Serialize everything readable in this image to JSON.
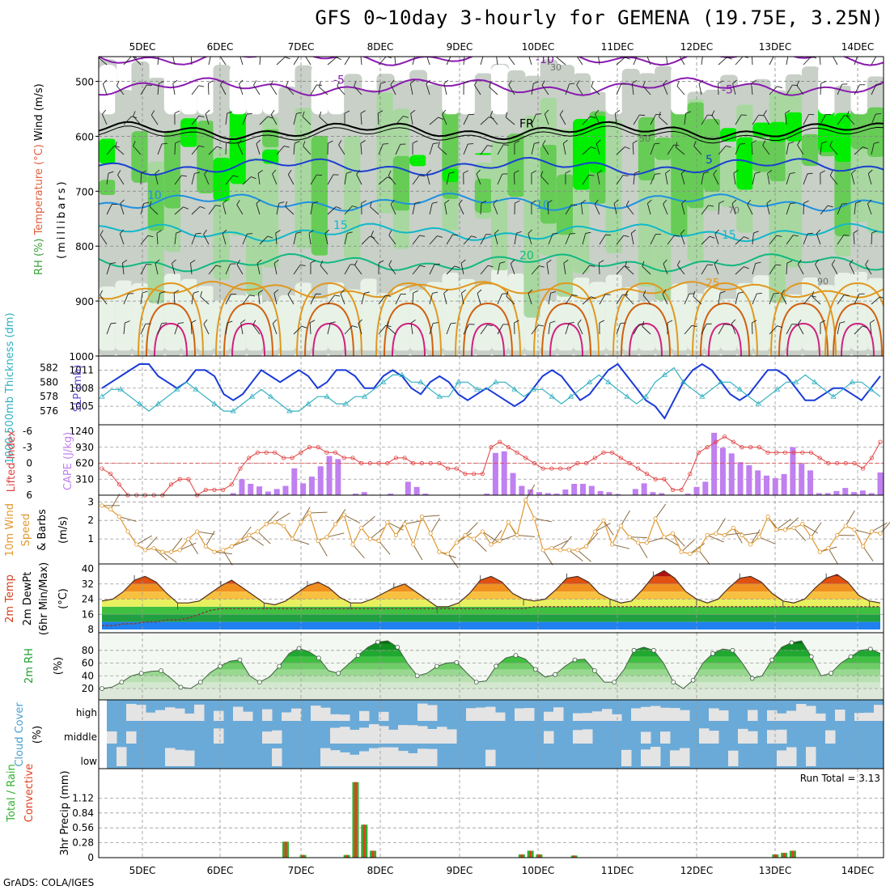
{
  "title": "GFS 0~10day 3-hourly for GEMENA (19.75E, 3.25N)",
  "credit": "GrADS: COLA/IGES",
  "dates": [
    "5DEC",
    "6DEC",
    "7DEC",
    "8DEC",
    "9DEC",
    "10DEC",
    "11DEC",
    "12DEC",
    "13DEC",
    "14DEC"
  ],
  "colors": {
    "green_bright": "#00ee00",
    "green_mid": "#66cc55",
    "green_light": "#a8d8a0",
    "grey": "#c8d0c8",
    "frame": "#000000",
    "cloud_blue": "#6aaad8",
    "cloud_white": "#e4e4e4"
  },
  "chart_data": [
    {
      "type": "contour",
      "panel": "upper-air",
      "ylabel": "(millibars)",
      "yticks": [
        500,
        600,
        700,
        800,
        900,
        1000
      ],
      "side_labels": [
        "Wind (m/s)",
        "Temperature (°C)",
        "RH (%)"
      ],
      "temp_contours": [
        {
          "label": "-10",
          "pressure": 455,
          "color": "#8a1ab0"
        },
        {
          "label": "-5",
          "pressure": 510,
          "color": "#8a1ab0"
        },
        {
          "label": "FR",
          "pressure": 590,
          "color": "#000000"
        },
        {
          "label": "5",
          "pressure": 655,
          "color": "#1a40d0"
        },
        {
          "label": "10",
          "pressure": 720,
          "color": "#1e90e0"
        },
        {
          "label": "15",
          "pressure": 775,
          "color": "#10b8c8"
        },
        {
          "label": "20",
          "pressure": 830,
          "color": "#10b880"
        },
        {
          "label": "25",
          "pressure": 880,
          "color": "#e09820"
        }
      ],
      "rh_labels": [
        "30",
        "50",
        "70",
        "90"
      ]
    },
    {
      "type": "line",
      "panel": "slp-thickness",
      "ylabel_left": "1000-500mb Thickness (dm)",
      "ylabel_right": "SLP (mb)",
      "yticks_left": [
        576,
        578,
        580,
        582
      ],
      "yticks_right": [
        1005,
        1008,
        1011
      ],
      "series": [
        {
          "name": "SLP",
          "color": "#1a3ad8",
          "values": [
            1008,
            1009,
            1010,
            1011,
            1012,
            1012,
            1010,
            1009,
            1008,
            1009,
            1011,
            1011,
            1010,
            1007,
            1006,
            1007,
            1009,
            1011,
            1010,
            1009,
            1010,
            1011,
            1010,
            1008,
            1009,
            1011,
            1011,
            1010,
            1008,
            1008,
            1010,
            1011,
            1010,
            1008,
            1007,
            1009,
            1010,
            1009,
            1007,
            1006,
            1007,
            1008,
            1007,
            1006,
            1005,
            1006,
            1008,
            1010,
            1011,
            1010,
            1008,
            1006,
            1007,
            1009,
            1011,
            1012,
            1010,
            1008,
            1006,
            1005,
            1003,
            1006,
            1009,
            1011,
            1012,
            1011,
            1009,
            1007,
            1006,
            1007,
            1009,
            1011,
            1011,
            1010,
            1008,
            1006,
            1006,
            1007,
            1008,
            1008,
            1007,
            1006,
            1008,
            1010
          ]
        },
        {
          "name": "Thickness",
          "color": "#30b0c0",
          "values": [
            578,
            579,
            579,
            578,
            577,
            576,
            577,
            578,
            579,
            580,
            579,
            578,
            577,
            576,
            576,
            577,
            578,
            579,
            578,
            577,
            576,
            576,
            577,
            578,
            578,
            577,
            577,
            578,
            578,
            579,
            580,
            581,
            581,
            580,
            580,
            579,
            578,
            578,
            580,
            580,
            579,
            579,
            580,
            580,
            579,
            578,
            579,
            579,
            578,
            577,
            578,
            579,
            580,
            581,
            580,
            579,
            578,
            577,
            578,
            580,
            581,
            582,
            580,
            579,
            578,
            579,
            580,
            580,
            579,
            578,
            577,
            578,
            579,
            580,
            580,
            581,
            580,
            579,
            578,
            579,
            580,
            580,
            579,
            578
          ]
        }
      ]
    },
    {
      "type": "bar",
      "panel": "cape-li",
      "ylabel_left": "Lifted Index",
      "ylabel_right": "CAPE (J/kg)",
      "yticks_left": [
        -6,
        -3,
        0,
        3,
        6
      ],
      "yticks_right": [
        310,
        620,
        930,
        1240
      ],
      "cape": [
        0,
        0,
        0,
        0,
        0,
        0,
        0,
        0,
        0,
        0,
        0,
        0,
        0,
        0,
        0,
        40,
        310,
        220,
        170,
        70,
        120,
        180,
        520,
        230,
        360,
        560,
        760,
        700,
        0,
        30,
        60,
        10,
        0,
        30,
        0,
        260,
        160,
        30,
        0,
        0,
        0,
        0,
        0,
        0,
        30,
        820,
        850,
        430,
        180,
        110,
        60,
        40,
        30,
        110,
        220,
        220,
        180,
        80,
        60,
        20,
        0,
        120,
        230,
        60,
        40,
        0,
        0,
        30,
        160,
        260,
        1210,
        920,
        810,
        640,
        580,
        480,
        380,
        330,
        410,
        930,
        610,
        480,
        40,
        40,
        80,
        140,
        60,
        90,
        40,
        440
      ],
      "li": [
        1,
        2,
        4,
        6,
        6,
        6,
        6,
        6,
        4,
        3,
        3,
        6,
        5,
        5,
        5,
        4,
        1,
        -1,
        -2,
        -2,
        -2,
        -1,
        -1,
        -2,
        -3,
        -3,
        -2,
        -2,
        -1,
        -1,
        0,
        0,
        0,
        0,
        -1,
        -1,
        0,
        0,
        0,
        0,
        1,
        1,
        2,
        2,
        2,
        -3,
        -4,
        -3,
        -2,
        -1,
        0,
        1,
        1,
        1,
        1,
        0,
        0,
        -1,
        -2,
        -2,
        -1,
        0,
        1,
        2,
        3,
        3,
        5,
        5,
        2,
        -2,
        -3,
        -4,
        -5,
        -4,
        -3,
        -3,
        -3,
        -2,
        -2,
        -2,
        -2,
        -2,
        -2,
        -1,
        0,
        0,
        0,
        0,
        1,
        -1,
        -4
      ]
    },
    {
      "type": "line",
      "panel": "wind10m",
      "ylabel": "10m Wind Speed & Barbs (m/s)",
      "yticks": [
        1,
        2,
        3
      ],
      "series": [
        {
          "name": "10m Wind",
          "color": "#e09830",
          "values": [
            2.8,
            2.6,
            2.2,
            1.4,
            0.7,
            0.4,
            0.5,
            0.3,
            0.3,
            0.4,
            1.0,
            1.4,
            0.6,
            0.3,
            0.4,
            0.6,
            0.9,
            1.2,
            1.4,
            1.8,
            1.9,
            1.7,
            1.0,
            1.9,
            2.4,
            0.9,
            1.1,
            1.8,
            2.3,
            0.7,
            1.6,
            1.0,
            0.9,
            1.9,
            1.2,
            1.8,
            0.7,
            2.2,
            1.3,
            0.3,
            0.2,
            0.8,
            1.2,
            1.0,
            1.4,
            0.7,
            0.9,
            1.9,
            1.2,
            3.1,
            2.1,
            0.4,
            0.5,
            0.4,
            0.4,
            0.4,
            0.6,
            1.4,
            2.0,
            0.7,
            1.7,
            1.1,
            0.8,
            0.8,
            2.1,
            1.1,
            1.3,
            0.3,
            0.2,
            0.4,
            1.2,
            1.3,
            1.2,
            1.6,
            1.2,
            0.7,
            1.1,
            2.2,
            1.5,
            1.5,
            1.6,
            1.8,
            1.1,
            0.3,
            0.5,
            1.2,
            1.7,
            1.5,
            0.6,
            1.4,
            1.3
          ]
        }
      ]
    },
    {
      "type": "area",
      "panel": "temp2m",
      "ylabel": "2m Temp 2m DewPt (6hr Min/Max) (°C)",
      "yticks": [
        8,
        16,
        24,
        32,
        40
      ],
      "temp": [
        23,
        24,
        28,
        34,
        36,
        33,
        27,
        22,
        22,
        23,
        27,
        31,
        34,
        30,
        26,
        22,
        21,
        23,
        27,
        31,
        33,
        30,
        25,
        22,
        22,
        24,
        27,
        30,
        32,
        28,
        24,
        20,
        20,
        22,
        27,
        34,
        36,
        33,
        27,
        24,
        23,
        24,
        29,
        35,
        36,
        33,
        27,
        24,
        22,
        23,
        29,
        36,
        39,
        35,
        28,
        24,
        22,
        24,
        30,
        35,
        36,
        33,
        27,
        23,
        22,
        24,
        30,
        35,
        37,
        33,
        26,
        23,
        22
      ],
      "dewpoint": [
        10,
        10,
        11,
        11,
        12,
        12,
        13,
        13,
        14,
        16,
        18,
        19,
        19,
        19,
        19,
        19,
        19,
        19,
        19,
        19,
        19,
        19,
        19,
        19,
        19,
        19,
        19,
        19,
        19,
        19,
        19,
        19,
        19,
        19,
        19,
        19,
        19,
        19,
        19,
        19,
        20,
        20,
        20,
        20,
        20,
        20,
        20,
        20,
        20,
        20,
        20,
        20,
        20,
        20,
        20,
        20,
        20,
        20,
        20,
        20,
        20,
        20,
        20,
        20,
        20,
        20,
        20,
        20,
        20,
        20,
        20,
        20,
        20
      ]
    },
    {
      "type": "area",
      "panel": "rh2m",
      "ylabel": "2m RH (%)",
      "yticks": [
        20,
        40,
        60,
        80
      ],
      "values": [
        20,
        22,
        30,
        40,
        44,
        47,
        48,
        36,
        22,
        20,
        30,
        45,
        55,
        63,
        65,
        40,
        30,
        38,
        55,
        75,
        83,
        78,
        68,
        48,
        44,
        58,
        72,
        85,
        93,
        95,
        85,
        60,
        40,
        44,
        55,
        60,
        61,
        45,
        30,
        32,
        55,
        68,
        72,
        66,
        50,
        38,
        42,
        55,
        65,
        66,
        48,
        30,
        30,
        50,
        80,
        85,
        80,
        60,
        30,
        20,
        33,
        60,
        75,
        82,
        80,
        60,
        36,
        40,
        65,
        85,
        92,
        95,
        70,
        40,
        44,
        60,
        70,
        80,
        82,
        75
      ]
    },
    {
      "type": "heatmap",
      "panel": "cloud",
      "ylabel": "Cloud Cover (%)",
      "ytick_labels": [
        "high",
        "middle",
        "low"
      ]
    },
    {
      "type": "bar",
      "panel": "precip",
      "ylabel": "3hr Precip (mm)",
      "side_labels": [
        "Total / Rain",
        "Convective"
      ],
      "yticks": [
        0,
        0.28,
        0.56,
        0.84,
        1.12
      ],
      "run_total": "Run Total = 3.13",
      "bars": [
        {
          "pos": 21,
          "value": 0.3
        },
        {
          "pos": 23,
          "value": 0.05
        },
        {
          "pos": 28,
          "value": 0.05
        },
        {
          "pos": 29,
          "value": 1.42
        },
        {
          "pos": 30,
          "value": 0.62
        },
        {
          "pos": 31,
          "value": 0.13
        },
        {
          "pos": 48,
          "value": 0.06
        },
        {
          "pos": 49,
          "value": 0.13
        },
        {
          "pos": 50,
          "value": 0.06
        },
        {
          "pos": 54,
          "value": 0.04
        },
        {
          "pos": 77,
          "value": 0.06
        },
        {
          "pos": 78,
          "value": 0.09
        },
        {
          "pos": 79,
          "value": 0.13
        }
      ]
    }
  ]
}
